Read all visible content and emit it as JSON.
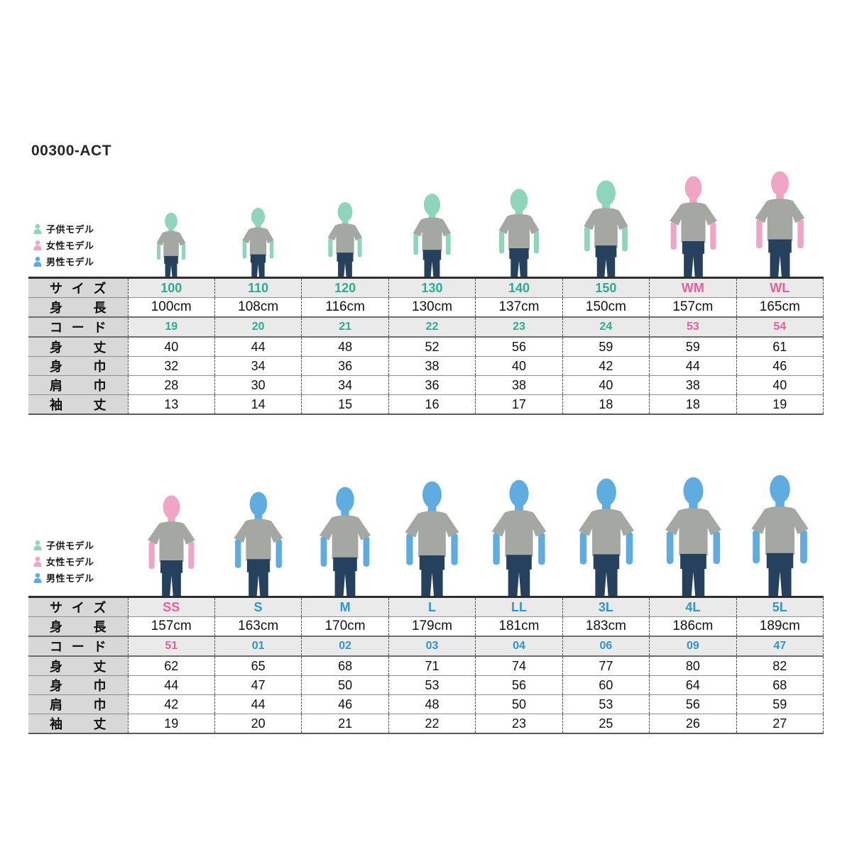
{
  "title": "00300-ACT",
  "legend": {
    "items": [
      {
        "label": "子供モデル",
        "type": "child"
      },
      {
        "label": "女性モデル",
        "type": "female"
      },
      {
        "label": "男性モデル",
        "type": "male"
      }
    ]
  },
  "row_labels": {
    "size": "サイズ",
    "height": "身長",
    "code": "コード",
    "body_length": "身丈",
    "body_width": "身巾",
    "shoulder_width": "肩巾",
    "sleeve_length": "袖丈"
  },
  "colors": {
    "child": "#8ED5BB",
    "female": "#F1A5C6",
    "male": "#5FACE1",
    "child_text": "#2BAD93",
    "female_text": "#E7609E",
    "male_text": "#2D96D2",
    "shirt": "#A5A8A2",
    "jeans": "#26415D"
  },
  "tables": [
    {
      "name": "kids-womens",
      "columns": [
        {
          "size": "100",
          "model": "child",
          "height": "100cm",
          "code": "19",
          "body_length": "40",
          "body_width": "32",
          "shoulder_width": "28",
          "sleeve_length": "13"
        },
        {
          "size": "110",
          "model": "child",
          "height": "108cm",
          "code": "20",
          "body_length": "44",
          "body_width": "34",
          "shoulder_width": "30",
          "sleeve_length": "14"
        },
        {
          "size": "120",
          "model": "child",
          "height": "116cm",
          "code": "21",
          "body_length": "48",
          "body_width": "36",
          "shoulder_width": "34",
          "sleeve_length": "15"
        },
        {
          "size": "130",
          "model": "child",
          "height": "130cm",
          "code": "22",
          "body_length": "52",
          "body_width": "38",
          "shoulder_width": "36",
          "sleeve_length": "16"
        },
        {
          "size": "140",
          "model": "child",
          "height": "137cm",
          "code": "23",
          "body_length": "56",
          "body_width": "40",
          "shoulder_width": "38",
          "sleeve_length": "17"
        },
        {
          "size": "150",
          "model": "child",
          "height": "150cm",
          "code": "24",
          "body_length": "59",
          "body_width": "42",
          "shoulder_width": "40",
          "sleeve_length": "18"
        },
        {
          "size": "WM",
          "model": "female",
          "height": "157cm",
          "code": "53",
          "body_length": "59",
          "body_width": "44",
          "shoulder_width": "38",
          "sleeve_length": "18"
        },
        {
          "size": "WL",
          "model": "female",
          "height": "165cm",
          "code": "54",
          "body_length": "61",
          "body_width": "46",
          "shoulder_width": "40",
          "sleeve_length": "19"
        }
      ]
    },
    {
      "name": "mens-adult",
      "columns": [
        {
          "size": "SS",
          "model": "female",
          "height": "157cm",
          "code": "51",
          "body_length": "62",
          "body_width": "44",
          "shoulder_width": "42",
          "sleeve_length": "19"
        },
        {
          "size": "S",
          "model": "male",
          "height": "163cm",
          "code": "01",
          "body_length": "65",
          "body_width": "47",
          "shoulder_width": "44",
          "sleeve_length": "20"
        },
        {
          "size": "M",
          "model": "male",
          "height": "170cm",
          "code": "02",
          "body_length": "68",
          "body_width": "50",
          "shoulder_width": "46",
          "sleeve_length": "21"
        },
        {
          "size": "L",
          "model": "male",
          "height": "179cm",
          "code": "03",
          "body_length": "71",
          "body_width": "53",
          "shoulder_width": "48",
          "sleeve_length": "22"
        },
        {
          "size": "LL",
          "model": "male",
          "height": "181cm",
          "code": "04",
          "body_length": "74",
          "body_width": "56",
          "shoulder_width": "50",
          "sleeve_length": "23"
        },
        {
          "size": "3L",
          "model": "male",
          "height": "183cm",
          "code": "06",
          "body_length": "77",
          "body_width": "60",
          "shoulder_width": "53",
          "sleeve_length": "25"
        },
        {
          "size": "4L",
          "model": "male",
          "height": "186cm",
          "code": "09",
          "body_length": "80",
          "body_width": "64",
          "shoulder_width": "56",
          "sleeve_length": "26"
        },
        {
          "size": "5L",
          "model": "male",
          "height": "189cm",
          "code": "47",
          "body_length": "82",
          "body_width": "68",
          "shoulder_width": "59",
          "sleeve_length": "27"
        }
      ]
    }
  ]
}
